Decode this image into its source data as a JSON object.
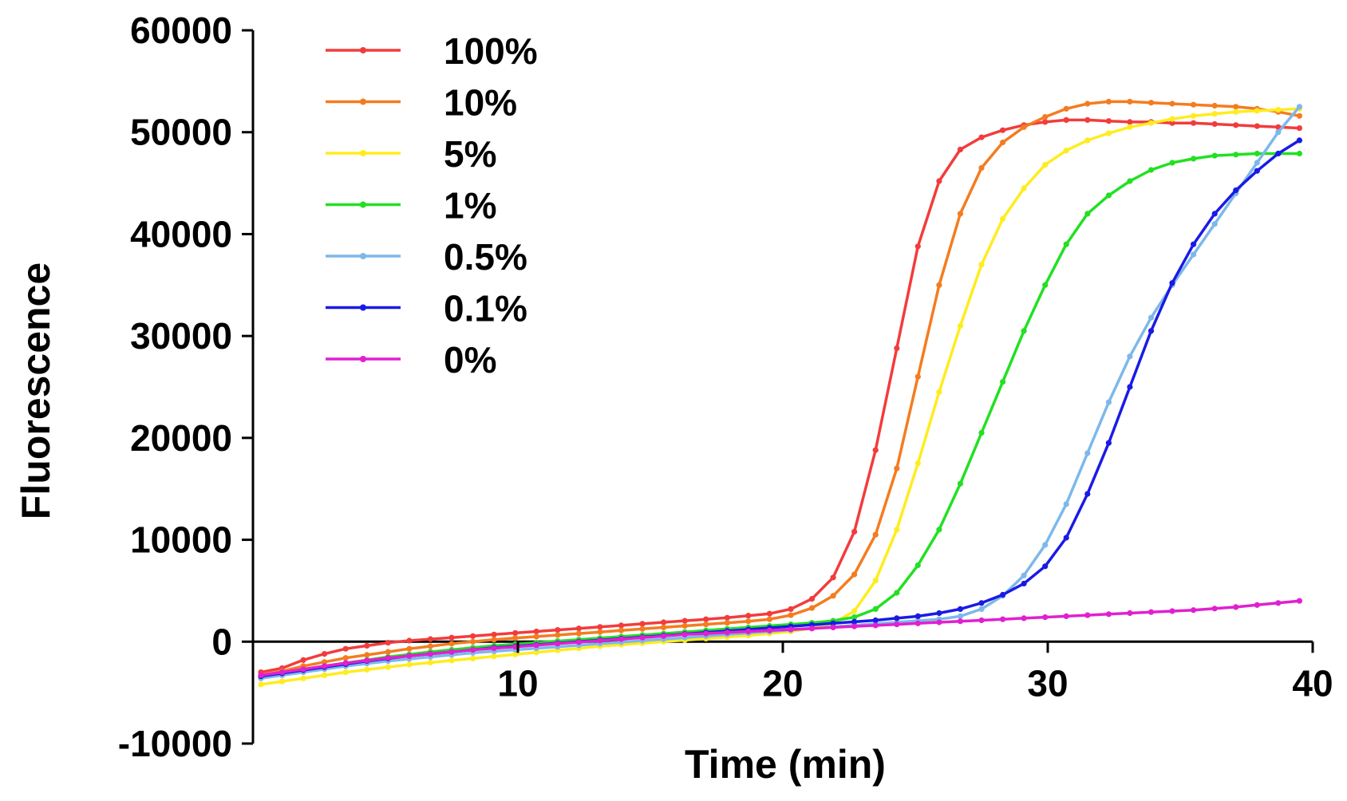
{
  "chart_data": {
    "type": "line",
    "xlabel": "Time (min)",
    "ylabel": "Fluorescence",
    "xlim": [
      0,
      40
    ],
    "ylim": [
      -10000,
      60000
    ],
    "x_ticks": [
      10,
      20,
      30,
      40
    ],
    "x_tick_labels": [
      "10",
      "20",
      "30",
      "40"
    ],
    "y_ticks": [
      60000,
      50000,
      40000,
      30000,
      20000,
      10000,
      0,
      -10000
    ],
    "y_tick_labels": [
      "60000",
      "50000",
      "40000",
      "30000",
      "20000",
      "10000",
      "0",
      "-10000"
    ],
    "grid": false,
    "legend_position": "top-left",
    "x": [
      0.3,
      1.1,
      1.9,
      2.7,
      3.5,
      4.3,
      5.1,
      5.9,
      6.7,
      7.5,
      8.3,
      9.1,
      9.9,
      10.7,
      11.5,
      12.3,
      13.1,
      13.9,
      14.7,
      15.5,
      16.3,
      17.1,
      17.9,
      18.7,
      19.5,
      20.3,
      21.1,
      21.9,
      22.7,
      23.5,
      24.3,
      25.1,
      25.9,
      26.7,
      27.5,
      28.3,
      29.1,
      29.9,
      30.7,
      31.5,
      32.3,
      33.1,
      33.9,
      34.7,
      35.5,
      36.3,
      37.1,
      37.9,
      38.7,
      39.5
    ],
    "series": [
      {
        "name": "100%",
        "color": "#f23c3c",
        "values": [
          -3000,
          -2600,
          -1800,
          -1200,
          -700,
          -400,
          -100,
          100,
          250,
          400,
          550,
          700,
          850,
          1000,
          1150,
          1300,
          1450,
          1600,
          1750,
          1900,
          2050,
          2200,
          2350,
          2550,
          2750,
          3200,
          4200,
          6300,
          10800,
          18800,
          28800,
          38800,
          45200,
          48300,
          49500,
          50200,
          50700,
          51000,
          51200,
          51200,
          51100,
          51000,
          51000,
          50900,
          50900,
          50800,
          50700,
          50600,
          50500,
          50400
        ]
      },
      {
        "name": "10%",
        "color": "#f47c20",
        "values": [
          -3300,
          -2900,
          -2400,
          -2000,
          -1600,
          -1300,
          -1000,
          -700,
          -450,
          -200,
          0,
          200,
          350,
          500,
          650,
          800,
          950,
          1100,
          1250,
          1400,
          1550,
          1700,
          1850,
          2000,
          2200,
          2600,
          3300,
          4500,
          6600,
          10500,
          17000,
          26000,
          35000,
          42000,
          46500,
          49000,
          50500,
          51500,
          52300,
          52800,
          53000,
          53000,
          52900,
          52800,
          52700,
          52600,
          52500,
          52300,
          52000,
          51600
        ]
      },
      {
        "name": "5%",
        "color": "#ffec1f",
        "values": [
          -4200,
          -3900,
          -3600,
          -3300,
          -3000,
          -2750,
          -2500,
          -2250,
          -2050,
          -1850,
          -1650,
          -1450,
          -1250,
          -1050,
          -850,
          -650,
          -450,
          -300,
          -150,
          0,
          150,
          300,
          450,
          600,
          800,
          1000,
          1300,
          1800,
          3000,
          6000,
          11000,
          17500,
          24500,
          31000,
          37000,
          41500,
          44500,
          46800,
          48200,
          49200,
          49900,
          50500,
          50900,
          51300,
          51600,
          51800,
          52000,
          52100,
          52200,
          52300
        ]
      },
      {
        "name": "1%",
        "color": "#22e022",
        "values": [
          -3500,
          -3200,
          -2800,
          -2400,
          -2100,
          -1800,
          -1500,
          -1250,
          -1000,
          -800,
          -600,
          -400,
          -250,
          -100,
          50,
          200,
          350,
          500,
          650,
          800,
          950,
          1100,
          1250,
          1400,
          1550,
          1700,
          1850,
          2050,
          2400,
          3200,
          4800,
          7500,
          11000,
          15500,
          20500,
          25500,
          30500,
          35000,
          39000,
          42000,
          43800,
          45200,
          46300,
          47000,
          47400,
          47700,
          47800,
          47900,
          47900,
          47900
        ]
      },
      {
        "name": "0.5%",
        "color": "#7db8ea",
        "values": [
          -3600,
          -3300,
          -3000,
          -2700,
          -2400,
          -2150,
          -1900,
          -1700,
          -1500,
          -1300,
          -1100,
          -950,
          -800,
          -650,
          -500,
          -350,
          -200,
          -50,
          100,
          250,
          400,
          550,
          700,
          850,
          1000,
          1150,
          1300,
          1450,
          1600,
          1750,
          1900,
          2050,
          2200,
          2500,
          3200,
          4500,
          6500,
          9500,
          13500,
          18500,
          23500,
          28000,
          31800,
          35000,
          38000,
          41000,
          44000,
          47000,
          50000,
          52500
        ]
      },
      {
        "name": "0.1%",
        "color": "#1a1ae6",
        "values": [
          -3400,
          -3100,
          -2800,
          -2500,
          -2200,
          -1900,
          -1650,
          -1400,
          -1200,
          -1000,
          -800,
          -600,
          -450,
          -300,
          -150,
          0,
          150,
          300,
          450,
          600,
          750,
          900,
          1050,
          1200,
          1350,
          1500,
          1650,
          1800,
          1950,
          2100,
          2300,
          2500,
          2800,
          3200,
          3800,
          4600,
          5700,
          7400,
          10200,
          14500,
          19500,
          25000,
          30500,
          35200,
          39000,
          42000,
          44300,
          46200,
          47900,
          49200
        ]
      },
      {
        "name": "0%",
        "color": "#e020d0",
        "values": [
          -3300,
          -3000,
          -2700,
          -2400,
          -2100,
          -1850,
          -1600,
          -1400,
          -1200,
          -1000,
          -800,
          -650,
          -500,
          -350,
          -200,
          -50,
          100,
          250,
          400,
          550,
          700,
          800,
          900,
          1000,
          1100,
          1200,
          1300,
          1400,
          1500,
          1600,
          1700,
          1800,
          1900,
          2000,
          2100,
          2200,
          2300,
          2400,
          2500,
          2600,
          2700,
          2800,
          2900,
          3000,
          3100,
          3250,
          3400,
          3600,
          3800,
          4000
        ]
      }
    ]
  }
}
